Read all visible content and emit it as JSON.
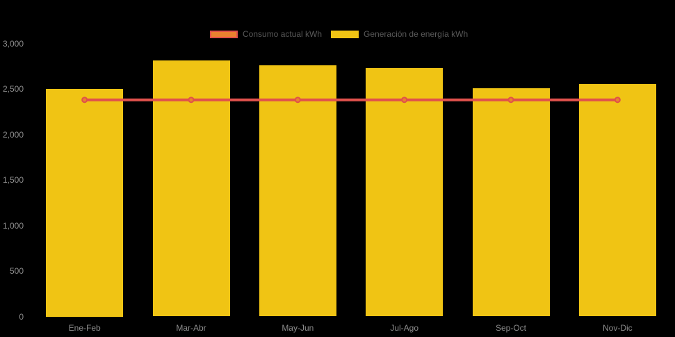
{
  "chart_data": {
    "type": "bar",
    "title": "",
    "categories": [
      "Ene-Feb",
      "Mar-Abr",
      "May-Jun",
      "Jul-Ago",
      "Sep-Oct",
      "Nov-Dic"
    ],
    "series": [
      {
        "name": "Consumo actual kWh",
        "type": "line",
        "values": [
          2380,
          2380,
          2380,
          2380,
          2380,
          2380
        ],
        "color": "#E0514C",
        "marker_fill": "#E8812F",
        "marker_border": "#E0504A"
      },
      {
        "name": "Generación de energía kWh",
        "type": "bar",
        "values": [
          2500,
          2810,
          2760,
          2730,
          2510,
          2550
        ],
        "color": "#F0C414"
      }
    ],
    "xlabel": "",
    "ylabel": "",
    "ylim": [
      0,
      3000
    ],
    "yticks": [
      0,
      500,
      1000,
      1500,
      2000,
      2500,
      3000
    ],
    "ytick_labels": [
      "0",
      "500",
      "1,000",
      "1,500",
      "2,000",
      "2,500",
      "3,000"
    ],
    "grid": false,
    "legend_position": "top-center",
    "colors": {
      "background": "#000000",
      "axis_label": "#8C8C8C",
      "legend_text": "#595959"
    }
  }
}
